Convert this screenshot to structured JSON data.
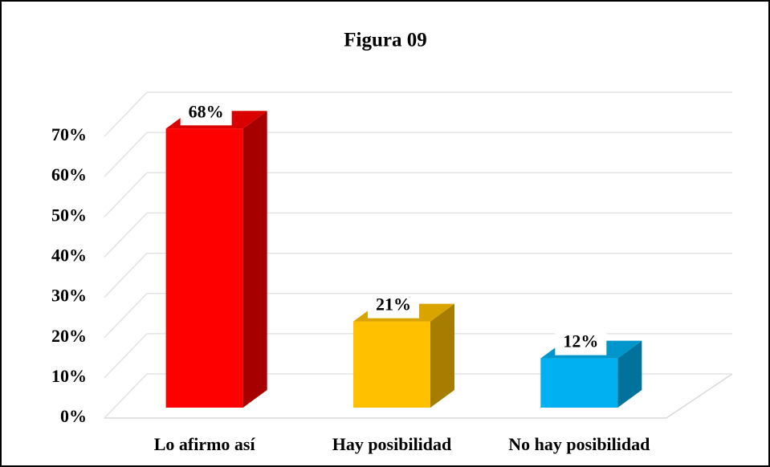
{
  "chart_data": {
    "type": "bar3d",
    "title": "Figura 09",
    "categories": [
      "Lo afirmo así",
      "Hay posibilidad",
      "No hay posibilidad"
    ],
    "values": [
      68,
      21,
      12
    ],
    "value_labels": [
      "68%",
      "21%",
      "12%"
    ],
    "colors": [
      "#ff0000",
      "#ffc000",
      "#00b0f0"
    ],
    "ylim": [
      0,
      70
    ],
    "yticks": [
      {
        "value": 0,
        "label": "0%"
      },
      {
        "value": 10,
        "label": "10%"
      },
      {
        "value": 20,
        "label": "20%"
      },
      {
        "value": 30,
        "label": "30%"
      },
      {
        "value": 40,
        "label": "40%"
      },
      {
        "value": 50,
        "label": "50%"
      },
      {
        "value": 60,
        "label": "60%"
      },
      {
        "value": 70,
        "label": "70%"
      }
    ],
    "grid": true
  }
}
